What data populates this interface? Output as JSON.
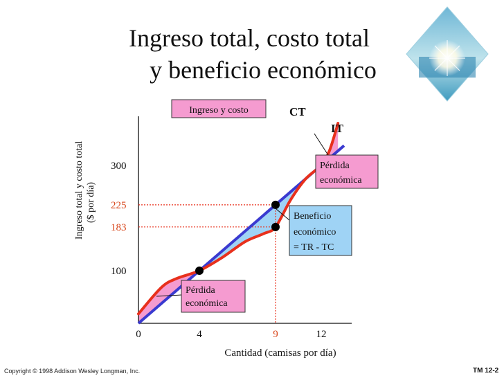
{
  "title_line1": "Ingreso total, costo total",
  "title_line2": "y beneficio económico",
  "footer": {
    "copyright": "Copyright © 1998 Addison Wesley Longman, Inc.",
    "slide_number": "TM 12-2"
  },
  "colors": {
    "revenue_line": "#3a3ad0",
    "cost_curve": "#e8301c",
    "profit_fill": "#9fd3f5",
    "loss_fill": "#f59bd0",
    "guide_line": "#e8301c",
    "highlight_text": "#d8451a"
  },
  "chart_data": {
    "type": "line",
    "xlabel": "Cantidad (camisas por día)",
    "ylabel_line1": "Ingreso total y costo total",
    "ylabel_line2": "($ por día)",
    "x_ticks": [
      {
        "value": 0,
        "label": "0",
        "highlight": false
      },
      {
        "value": 4,
        "label": "4",
        "highlight": false
      },
      {
        "value": 9,
        "label": "9",
        "highlight": true
      },
      {
        "value": 12,
        "label": "12",
        "highlight": false
      }
    ],
    "y_ticks": [
      {
        "value": 100,
        "label": "100",
        "highlight": false
      },
      {
        "value": 183,
        "label": "183",
        "highlight": true
      },
      {
        "value": 225,
        "label": "225",
        "highlight": true
      },
      {
        "value": 300,
        "label": "300",
        "highlight": false
      }
    ],
    "xlim": [
      0,
      14
    ],
    "ylim": [
      0,
      380
    ],
    "series": [
      {
        "name": "IT",
        "x": [
          0,
          13.5
        ],
        "y": [
          0,
          337.5
        ]
      },
      {
        "name": "CT",
        "x": [
          0,
          1.5,
          2.5,
          4,
          5.5,
          7,
          8.2,
          9,
          10,
          11,
          12,
          12.5,
          12.9,
          13.1
        ],
        "y": [
          18,
          68,
          85,
          100,
          125,
          155,
          170,
          183,
          235,
          275,
          300,
          325,
          360,
          380
        ]
      }
    ],
    "points": [
      {
        "x": 4,
        "y": 100
      },
      {
        "x": 9,
        "y": 183
      },
      {
        "x": 9,
        "y": 225
      },
      {
        "x": 12,
        "y": 300
      }
    ],
    "guides": [
      {
        "from_x": 9,
        "y": 225
      },
      {
        "from_x": 9,
        "y": 183
      }
    ],
    "legend_label": "Ingreso y costo",
    "annotations": {
      "loss_low_line1": "Pérdida",
      "loss_low_line2": "económica",
      "profit_line1": "Beneficio",
      "profit_line2": "económico",
      "profit_line3": "= TR - TC",
      "loss_high_line1": "Pérdida",
      "loss_high_line2": "económica"
    }
  }
}
